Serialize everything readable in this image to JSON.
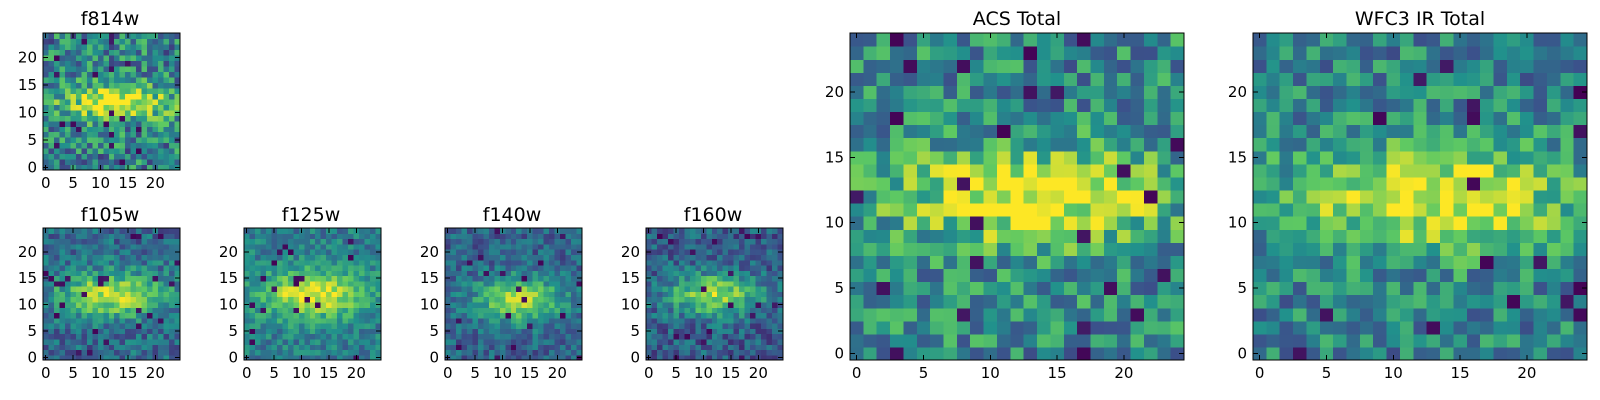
{
  "figure": {
    "colormap": [
      "#440154",
      "#3b528b",
      "#21918c",
      "#5ec962",
      "#fde725"
    ]
  },
  "chart_data": [
    {
      "type": "heatmap",
      "title": "f814w",
      "grid_size": 25,
      "x_ticks": [
        0,
        5,
        10,
        15,
        20
      ],
      "y_ticks": [
        0,
        5,
        10,
        15,
        20
      ],
      "xlim": [
        0,
        24
      ],
      "ylim": [
        0,
        24
      ],
      "source_center": [
        13,
        12
      ],
      "source_width": [
        7,
        2.2
      ],
      "noise": 0.55,
      "base": 0.45,
      "seed": 11
    },
    {
      "type": "heatmap",
      "title": "f105w",
      "grid_size": 25,
      "x_ticks": [
        0,
        5,
        10,
        15,
        20
      ],
      "y_ticks": [
        0,
        5,
        10,
        15,
        20
      ],
      "xlim": [
        0,
        24
      ],
      "ylim": [
        0,
        24
      ],
      "source_center": [
        12,
        12
      ],
      "source_width": [
        7,
        3
      ],
      "noise": 0.35,
      "base": 0.35,
      "seed": 23
    },
    {
      "type": "heatmap",
      "title": "f125w",
      "grid_size": 25,
      "x_ticks": [
        0,
        5,
        10,
        15,
        20
      ],
      "y_ticks": [
        0,
        5,
        10,
        15,
        20
      ],
      "xlim": [
        0,
        24
      ],
      "ylim": [
        0,
        24
      ],
      "source_center": [
        12,
        12
      ],
      "source_width": [
        7,
        3.2
      ],
      "noise": 0.3,
      "base": 0.42,
      "seed": 37
    },
    {
      "type": "heatmap",
      "title": "f140w",
      "grid_size": 25,
      "x_ticks": [
        0,
        5,
        10,
        15,
        20
      ],
      "y_ticks": [
        0,
        5,
        10,
        15,
        20
      ],
      "xlim": [
        0,
        24
      ],
      "ylim": [
        0,
        24
      ],
      "source_center": [
        13,
        11
      ],
      "source_width": [
        5.5,
        3
      ],
      "noise": 0.3,
      "base": 0.32,
      "seed": 41
    },
    {
      "type": "heatmap",
      "title": "f160w",
      "grid_size": 25,
      "x_ticks": [
        0,
        5,
        10,
        15,
        20
      ],
      "y_ticks": [
        0,
        5,
        10,
        15,
        20
      ],
      "xlim": [
        0,
        24
      ],
      "ylim": [
        0,
        24
      ],
      "source_center": [
        12,
        12
      ],
      "source_width": [
        6,
        2.8
      ],
      "noise": 0.35,
      "base": 0.3,
      "seed": 53
    },
    {
      "type": "heatmap",
      "title": "ACS Total",
      "grid_size": 25,
      "x_ticks": [
        0,
        5,
        10,
        15,
        20
      ],
      "y_ticks": [
        0,
        5,
        10,
        15,
        20
      ],
      "xlim": [
        0,
        24
      ],
      "ylim": [
        0,
        24
      ],
      "source_center": [
        13,
        12
      ],
      "source_width": [
        7,
        2.6
      ],
      "noise": 0.5,
      "base": 0.48,
      "seed": 67
    },
    {
      "type": "heatmap",
      "title": "WFC3 IR Total",
      "grid_size": 25,
      "x_ticks": [
        0,
        5,
        10,
        15,
        20
      ],
      "y_ticks": [
        0,
        5,
        10,
        15,
        20
      ],
      "xlim": [
        0,
        24
      ],
      "ylim": [
        0,
        24
      ],
      "source_center": [
        13,
        12
      ],
      "source_width": [
        7.5,
        2.8
      ],
      "noise": 0.45,
      "base": 0.45,
      "seed": 79
    }
  ]
}
